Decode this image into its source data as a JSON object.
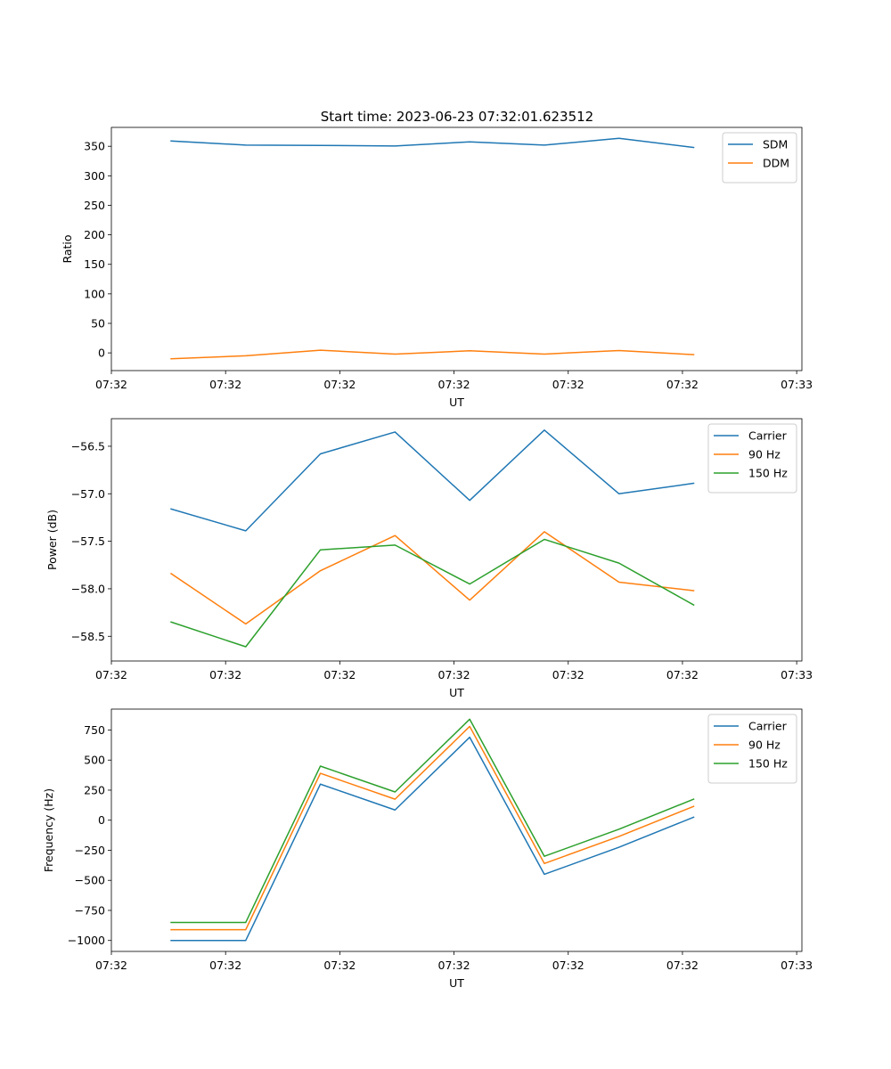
{
  "title": "Start time: 2023-06-23 07:32:01.623512",
  "chart_data": [
    {
      "type": "line",
      "xlabel": "UT",
      "ylabel": "Ratio",
      "x": [
        1.0,
        2.0,
        3.0,
        4.0,
        5.0,
        6.0,
        7.0,
        8.0
      ],
      "xlim": [
        0.2,
        9.45
      ],
      "xticks": [
        0.2,
        1.73,
        3.26,
        4.79,
        6.32,
        7.85,
        9.38
      ],
      "xtick_labels": [
        "07:32",
        "07:32",
        "07:32",
        "07:32",
        "07:32",
        "07:32",
        "07:32"
      ],
      "ylim": [
        -30,
        382
      ],
      "yticks": [
        0,
        50,
        100,
        150,
        200,
        250,
        300,
        350
      ],
      "ytick_labels": [
        "0",
        "50",
        "100",
        "150",
        "200",
        "250",
        "300",
        "350"
      ],
      "legend": "top-right",
      "series": [
        {
          "name": "SDM",
          "color": "#1f77b4",
          "values": [
            359,
            352,
            351.5,
            350.5,
            357.5,
            352,
            363.5,
            348
          ]
        },
        {
          "name": "DDM",
          "color": "#ff7f0e",
          "values": [
            -10,
            -5,
            4.5,
            -2,
            3.5,
            -2,
            4,
            -3
          ]
        }
      ],
      "last_xtick_label": "07:33"
    },
    {
      "type": "line",
      "xlabel": "UT",
      "ylabel": "Power (dB)",
      "x": [
        1.0,
        2.0,
        3.0,
        4.0,
        5.0,
        6.0,
        7.0,
        8.0
      ],
      "xlim": [
        0.2,
        9.45
      ],
      "xticks": [
        0.2,
        1.73,
        3.26,
        4.79,
        6.32,
        7.85,
        9.38
      ],
      "xtick_labels": [
        "07:32",
        "07:32",
        "07:32",
        "07:32",
        "07:32",
        "07:32",
        "07:32"
      ],
      "ylim": [
        -58.76,
        -56.21
      ],
      "yticks": [
        -58.5,
        -58.0,
        -57.5,
        -57.0,
        -56.5
      ],
      "ytick_labels": [
        "−58.5",
        "−58.0",
        "−57.5",
        "−57.0",
        "−56.5"
      ],
      "legend": "top-right",
      "series": [
        {
          "name": "Carrier",
          "color": "#1f77b4",
          "values": [
            -57.16,
            -57.39,
            -56.58,
            -56.35,
            -57.07,
            -56.33,
            -57.0,
            -56.89
          ]
        },
        {
          "name": "90 Hz",
          "color": "#ff7f0e",
          "values": [
            -57.84,
            -58.37,
            -57.81,
            -57.44,
            -58.12,
            -57.4,
            -57.93,
            -58.02
          ]
        },
        {
          "name": "150 Hz",
          "color": "#2ca02c",
          "values": [
            -58.35,
            -58.61,
            -57.59,
            -57.54,
            -57.95,
            -57.48,
            -57.73,
            -58.17
          ]
        }
      ],
      "last_xtick_label": "07:33"
    },
    {
      "type": "line",
      "xlabel": "UT",
      "ylabel": "Frequency (Hz)",
      "x": [
        1.0,
        2.0,
        3.0,
        4.0,
        5.0,
        6.0,
        7.0,
        8.0
      ],
      "xlim": [
        0.2,
        9.45
      ],
      "xticks": [
        0.2,
        1.73,
        3.26,
        4.79,
        6.32,
        7.85,
        9.38
      ],
      "xtick_labels": [
        "07:32",
        "07:32",
        "07:32",
        "07:32",
        "07:32",
        "07:32",
        "07:32"
      ],
      "ylim": [
        -1091,
        924
      ],
      "yticks": [
        -1000,
        -750,
        -500,
        -250,
        0,
        250,
        500,
        750
      ],
      "ytick_labels": [
        "−1000",
        "−750",
        "−500",
        "−250",
        "0",
        "250",
        "500",
        "750"
      ],
      "legend": "top-right",
      "series": [
        {
          "name": "Carrier",
          "color": "#1f77b4",
          "values": [
            -1000,
            -1000,
            300,
            85,
            690,
            -450,
            -225,
            25
          ]
        },
        {
          "name": "90 Hz",
          "color": "#ff7f0e",
          "values": [
            -910,
            -910,
            390,
            175,
            780,
            -360,
            -135,
            115
          ]
        },
        {
          "name": "150 Hz",
          "color": "#2ca02c",
          "values": [
            -850,
            -850,
            450,
            235,
            840,
            -300,
            -75,
            175
          ]
        }
      ],
      "last_xtick_label": "07:33"
    }
  ]
}
